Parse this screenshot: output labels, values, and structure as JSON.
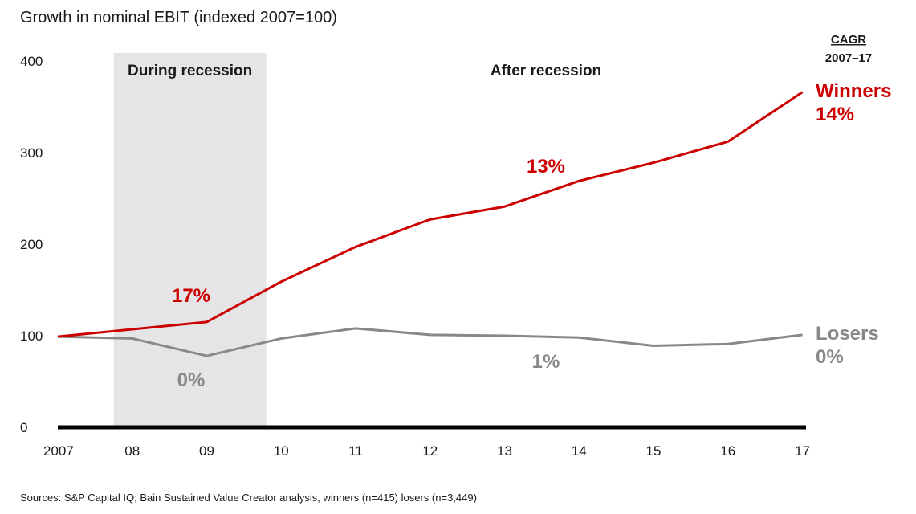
{
  "chart_data": {
    "type": "line",
    "title": "Growth in nominal EBIT (indexed 2007=100)",
    "x": [
      "2007",
      "08",
      "09",
      "10",
      "11",
      "12",
      "13",
      "14",
      "15",
      "16",
      "17"
    ],
    "ylim": [
      0,
      400
    ],
    "yticks": [
      "0",
      "100",
      "200",
      "300",
      "400"
    ],
    "shaded_period": {
      "label": "During recession",
      "from": "2007",
      "to": "10"
    },
    "period_labels": {
      "during": "During recession",
      "after": "After recession"
    },
    "cagr_header": {
      "line1": "CAGR",
      "line2": "2007–17"
    },
    "colors": {
      "winners": "#cc0000",
      "losers": "#888888",
      "band": "#e5e5e8",
      "axis": "#000000"
    },
    "series": [
      {
        "name": "Winners",
        "cagr": "14%",
        "values": [
          99,
          107,
          115,
          159,
          197,
          227,
          241,
          269,
          289,
          312,
          366
        ]
      },
      {
        "name": "Losers",
        "cagr": "0%",
        "values": [
          99,
          97,
          78,
          97,
          108,
          101,
          100,
          98,
          89,
          91,
          101
        ]
      }
    ],
    "annotations": [
      {
        "text": "17%",
        "series": "Winners",
        "period": "During recession"
      },
      {
        "text": "13%",
        "series": "Winners",
        "period": "After recession"
      },
      {
        "text": "0%",
        "series": "Losers",
        "period": "During recession"
      },
      {
        "text": "1%",
        "series": "Losers",
        "period": "After recession"
      }
    ],
    "source": "Sources: S&P Capital IQ; Bain Sustained Value Creator analysis, winners (n=415) losers (n=3,449)"
  }
}
